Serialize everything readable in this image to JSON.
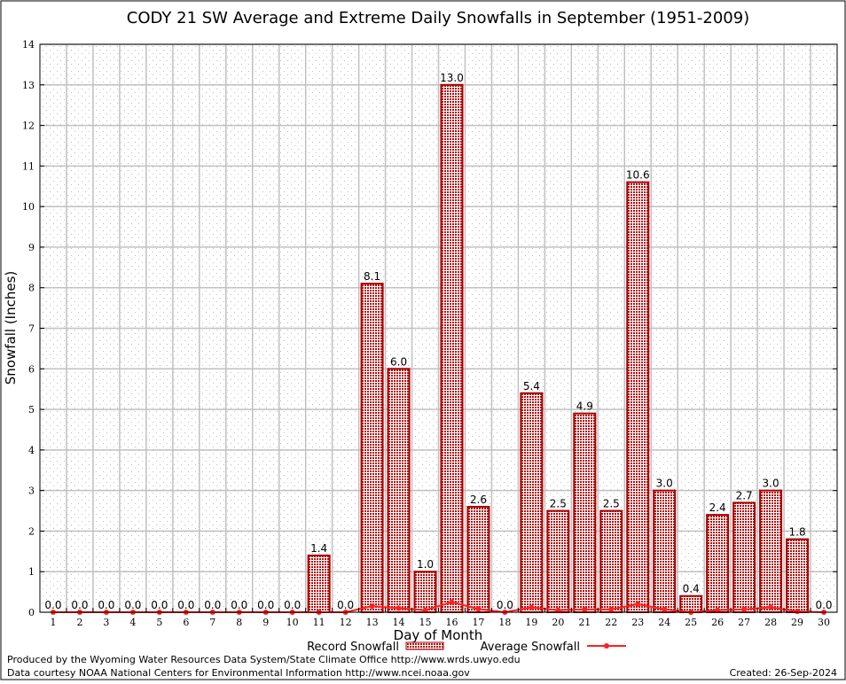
{
  "chart_data": {
    "type": "bar",
    "title": "CODY 21 SW Average and Extreme Daily Snowfalls in September (1951-2009)",
    "xlabel": "Day of Month",
    "ylabel": "Snowfall (Inches)",
    "ylim": [
      0,
      14
    ],
    "yticks": [
      0,
      1,
      2,
      3,
      4,
      5,
      6,
      7,
      8,
      9,
      10,
      11,
      12,
      13,
      14
    ],
    "grid": true,
    "legend_placement": "bottom",
    "categories": [
      1,
      2,
      3,
      4,
      5,
      6,
      7,
      8,
      9,
      10,
      11,
      12,
      13,
      14,
      15,
      16,
      17,
      18,
      19,
      20,
      21,
      22,
      23,
      24,
      25,
      26,
      27,
      28,
      29,
      30
    ],
    "series": [
      {
        "name": "Record Snowfall",
        "type": "bar",
        "color": "#aa0000",
        "values": [
          0.0,
          0.0,
          0.0,
          0.0,
          0.0,
          0.0,
          0.0,
          0.0,
          0.0,
          0.0,
          1.4,
          0.0,
          8.1,
          6.0,
          1.0,
          13.0,
          2.6,
          0.0,
          5.4,
          2.5,
          4.9,
          2.5,
          10.6,
          3.0,
          0.4,
          2.4,
          2.7,
          3.0,
          1.8,
          0.0
        ],
        "labels": [
          "0.0",
          "0.0",
          "0.0",
          "0.0",
          "0.0",
          "0.0",
          "0.0",
          "0.0",
          "0.0",
          "0.0",
          "1.4",
          "0.0",
          "8.1",
          "6.0",
          "1.0",
          "13.0",
          "2.6",
          "0.0",
          "5.4",
          "2.5",
          "4.9",
          "2.5",
          "10.6",
          "3.0",
          "0.4",
          "2.4",
          "2.7",
          "3.0",
          "1.8",
          "0.0"
        ]
      },
      {
        "name": "Average Snowfall",
        "type": "line",
        "color": "#ff2020",
        "values": [
          0,
          0,
          0,
          0,
          0,
          0,
          0,
          0,
          0,
          0,
          0.0,
          0.0,
          0.15,
          0.1,
          0.05,
          0.25,
          0.08,
          0.0,
          0.12,
          0.05,
          0.07,
          0.07,
          0.2,
          0.07,
          0.0,
          0.05,
          0.07,
          0.12,
          0.02,
          0.0
        ]
      }
    ]
  },
  "footer": {
    "produced_by": "Produced by the Wyoming Water Resources Data System/State Climate Office http://www.wrds.uwyo.edu",
    "courtesy": "Data courtesy NOAA National Centers for Environmental Information http://www.ncei.noaa.gov",
    "created": "Created: 26-Sep-2024"
  }
}
